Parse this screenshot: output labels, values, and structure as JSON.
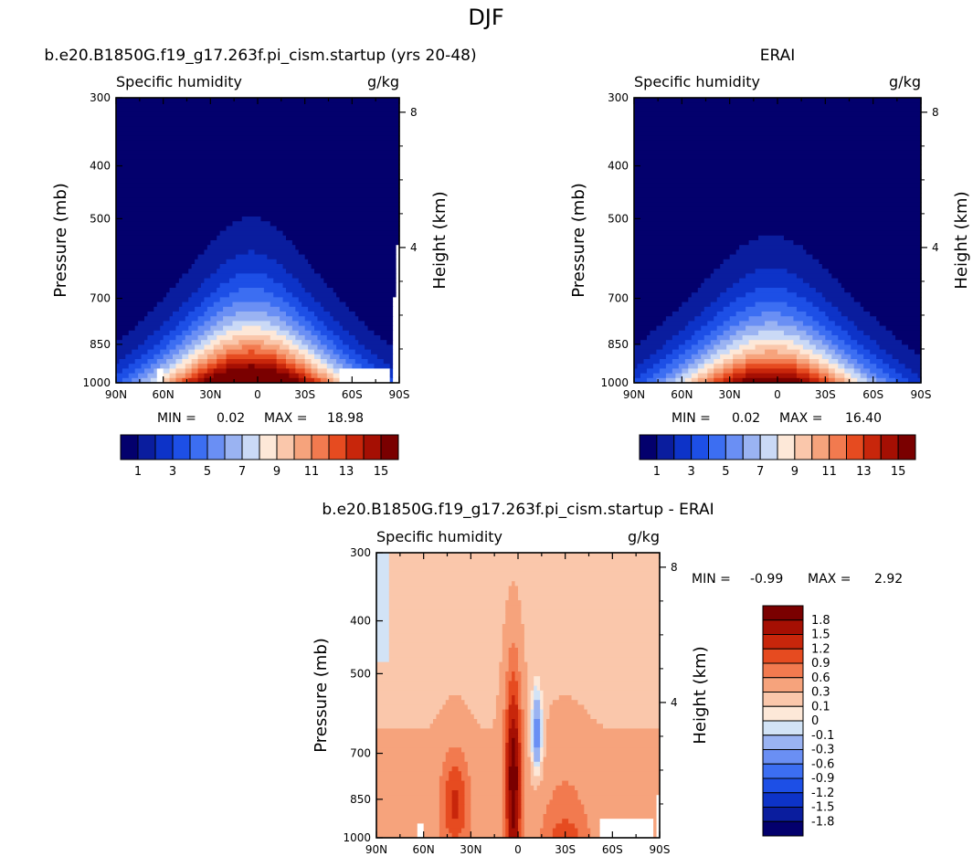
{
  "figure_title": "DJF",
  "chart_data": [
    {
      "type": "heatmap",
      "title": "b.e20.B1850G.f19_g17.263f.pi_cism.startup (yrs 20-48)",
      "left_subtitle": "Specific humidity",
      "right_subtitle": "g/kg",
      "ylabel": "Pressure (mb)",
      "ylabel_right": "Height (km)",
      "x_ticks": [
        "90N",
        "60N",
        "30N",
        "0",
        "30S",
        "60S",
        "90S"
      ],
      "y_ticks": [
        "300",
        "400",
        "500",
        "700",
        "850",
        "1000"
      ],
      "y_right_ticks": [
        "8",
        "4"
      ],
      "stats": {
        "min_label": "MIN =",
        "min": "0.02",
        "max_label": "MAX =",
        "max": "18.98"
      },
      "levels": [
        1,
        2,
        3,
        4,
        5,
        6,
        7,
        8,
        9,
        10,
        11,
        12,
        13,
        14,
        15
      ],
      "colorbar_labels": [
        "1",
        "3",
        "5",
        "7",
        "9",
        "11",
        "13",
        "15"
      ],
      "field": {
        "peak": 18.98,
        "peak_lat": 4,
        "top_pressure": 340
      }
    },
    {
      "type": "heatmap",
      "title": "ERAI",
      "left_subtitle": "Specific humidity",
      "right_subtitle": "g/kg",
      "ylabel": "Pressure (mb)",
      "ylabel_right": "Height (km)",
      "x_ticks": [
        "90N",
        "60N",
        "30N",
        "0",
        "30S",
        "60S",
        "90S"
      ],
      "y_ticks": [
        "300",
        "400",
        "500",
        "700",
        "850",
        "1000"
      ],
      "y_right_ticks": [
        "8",
        "4"
      ],
      "stats": {
        "min_label": "MIN =",
        "min": "0.02",
        "max_label": "MAX =",
        "max": "16.40"
      },
      "levels": [
        1,
        2,
        3,
        4,
        5,
        6,
        7,
        8,
        9,
        10,
        11,
        12,
        13,
        14,
        15
      ],
      "colorbar_labels": [
        "1",
        "3",
        "5",
        "7",
        "9",
        "11",
        "13",
        "15"
      ],
      "field": {
        "peak": 16.4,
        "peak_lat": 4,
        "top_pressure": 380
      }
    },
    {
      "type": "heatmap",
      "title": "b.e20.B1850G.f19_g17.263f.pi_cism.startup - ERAI",
      "left_subtitle": "Specific humidity",
      "right_subtitle": "g/kg",
      "ylabel": "Pressure (mb)",
      "ylabel_right": "Height (km)",
      "x_ticks": [
        "90N",
        "60N",
        "30N",
        "0",
        "30S",
        "60S",
        "90S"
      ],
      "y_ticks": [
        "300",
        "400",
        "500",
        "700",
        "850",
        "1000"
      ],
      "y_right_ticks": [
        "8",
        "4"
      ],
      "stats": {
        "min_label": "MIN =",
        "min": "-0.99",
        "max_label": "MAX =",
        "max": "2.92"
      },
      "levels": [
        -1.8,
        -1.5,
        -1.2,
        -0.9,
        -0.6,
        -0.3,
        -0.1,
        0,
        0.1,
        0.3,
        0.6,
        0.9,
        1.2,
        1.5,
        1.8
      ],
      "colorbar_labels": [
        "1.8",
        "1.5",
        "1.2",
        "0.9",
        "0.6",
        "0.3",
        "0.1",
        "0",
        "-0.1",
        "-0.3",
        "-0.6",
        "-0.9",
        "-1.2",
        "-1.5",
        "-1.8"
      ]
    }
  ],
  "colors": {
    "seq": [
      "#03006d",
      "#0a1d9e",
      "#0d33c8",
      "#1d4fe6",
      "#3c6ef2",
      "#6a8ff4",
      "#9ab3f2",
      "#cad9f6",
      "#fde8d8",
      "#fac7ab",
      "#f6a37c",
      "#f27a4f",
      "#e64b20",
      "#c8260b",
      "#a50f03",
      "#7a0000"
    ],
    "diff": [
      "#03006d",
      "#0a1d9e",
      "#0d33c8",
      "#1d4fe6",
      "#3c6ef2",
      "#6a8ff4",
      "#9ab3f2",
      "#d2e3f6",
      "#fde8d8",
      "#fac7ab",
      "#f6a37c",
      "#f27a4f",
      "#e64b20",
      "#c8260b",
      "#a50f03",
      "#7a0000"
    ],
    "missing": "#ffffff"
  }
}
